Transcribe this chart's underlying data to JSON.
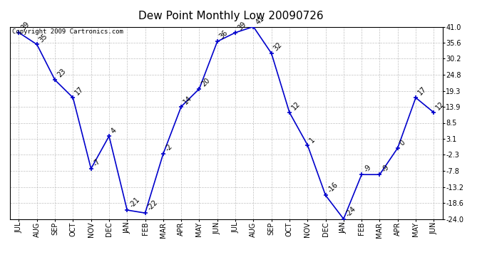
{
  "title": "Dew Point Monthly Low 20090726",
  "copyright": "Copyright 2009 Cartronics.com",
  "months": [
    "JUL",
    "AUG",
    "SEP",
    "OCT",
    "NOV",
    "DEC",
    "JAN",
    "FEB",
    "MAR",
    "APR",
    "MAY",
    "JUN",
    "JUL",
    "AUG",
    "SEP",
    "OCT",
    "NOV",
    "DEC",
    "JAN",
    "FEB",
    "MAR",
    "APR",
    "MAY",
    "JUN"
  ],
  "values": [
    39,
    35,
    23,
    17,
    -7,
    4,
    -21,
    -22,
    -2,
    14,
    20,
    36,
    39,
    41,
    32,
    12,
    1,
    -16,
    -24,
    -9,
    -9,
    0,
    17,
    12
  ],
  "yticks": [
    41.0,
    35.6,
    30.2,
    24.8,
    19.3,
    13.9,
    8.5,
    3.1,
    -2.3,
    -7.8,
    -13.2,
    -18.6,
    -24.0
  ],
  "ymin": -24.0,
  "ymax": 41.0,
  "line_color": "#0000cc",
  "marker_color": "#0000cc",
  "bg_color": "#ffffff",
  "grid_color": "#c0c0c0",
  "title_fontsize": 11,
  "label_fontsize": 7,
  "tick_fontsize": 7,
  "copyright_fontsize": 6.5
}
